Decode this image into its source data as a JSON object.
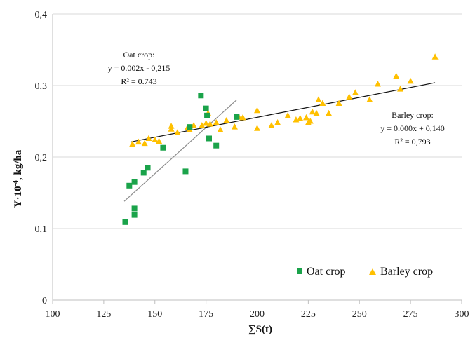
{
  "chart_data": {
    "type": "scatter",
    "xlabel": "∑S(t)",
    "ylabel_prefix": "Y·10",
    "ylabel_sup": "-4",
    "ylabel_suffix": ", kg/ha",
    "xlim": [
      100,
      300
    ],
    "ylim": [
      0,
      0.4
    ],
    "x_ticks": [
      100,
      125,
      150,
      175,
      200,
      225,
      250,
      275,
      300
    ],
    "x_tick_labels": [
      "100",
      "125",
      "150",
      "175",
      "200",
      "225",
      "250",
      "275",
      "300"
    ],
    "y_ticks": [
      0,
      0.1,
      0.2,
      0.3,
      0.4
    ],
    "y_tick_labels": [
      "0",
      "0,1",
      "0,2",
      "0,3",
      "0,4"
    ],
    "grid": "horizontal",
    "legend_position": "bottom-right",
    "series": [
      {
        "name": "Oat crop",
        "marker": "square",
        "color": "#1aa34a",
        "points": [
          [
            135.5,
            0.109
          ],
          [
            137.5,
            0.16
          ],
          [
            140.0,
            0.128
          ],
          [
            140.0,
            0.119
          ],
          [
            140.0,
            0.165
          ],
          [
            144.5,
            0.178
          ],
          [
            146.5,
            0.185
          ],
          [
            154.0,
            0.213
          ],
          [
            165.0,
            0.18
          ],
          [
            167.0,
            0.242
          ],
          [
            172.5,
            0.286
          ],
          [
            175.0,
            0.268
          ],
          [
            175.5,
            0.258
          ],
          [
            176.5,
            0.226
          ],
          [
            180.0,
            0.216
          ],
          [
            190.0,
            0.256
          ]
        ],
        "trendline": {
          "x_range": [
            135,
            190
          ],
          "y_range": [
            0.138,
            0.28
          ],
          "equation": "y = 0.002x - 0,215",
          "r2": "R² = 0.743",
          "annotation_title": "Oat crop:"
        }
      },
      {
        "name": "Barley crop",
        "marker": "triangle",
        "color": "#ffc000",
        "points": [
          [
            139,
            0.218
          ],
          [
            142,
            0.221
          ],
          [
            145,
            0.219
          ],
          [
            147,
            0.226
          ],
          [
            150,
            0.224
          ],
          [
            152,
            0.222
          ],
          [
            158,
            0.243
          ],
          [
            158,
            0.239
          ],
          [
            161,
            0.234
          ],
          [
            166,
            0.241
          ],
          [
            167,
            0.238
          ],
          [
            169,
            0.244
          ],
          [
            173,
            0.244
          ],
          [
            175,
            0.247
          ],
          [
            176,
            0.261
          ],
          [
            177,
            0.246
          ],
          [
            180,
            0.248
          ],
          [
            182,
            0.238
          ],
          [
            185,
            0.251
          ],
          [
            189,
            0.242
          ],
          [
            191,
            0.256
          ],
          [
            193,
            0.255
          ],
          [
            200,
            0.24
          ],
          [
            200,
            0.265
          ],
          [
            207,
            0.244
          ],
          [
            210,
            0.248
          ],
          [
            215,
            0.258
          ],
          [
            219,
            0.252
          ],
          [
            221,
            0.254
          ],
          [
            224,
            0.255
          ],
          [
            225,
            0.248
          ],
          [
            226,
            0.25
          ],
          [
            227,
            0.263
          ],
          [
            229,
            0.261
          ],
          [
            230,
            0.28
          ],
          [
            232,
            0.275
          ],
          [
            235,
            0.261
          ],
          [
            240,
            0.275
          ],
          [
            245,
            0.284
          ],
          [
            248,
            0.29
          ],
          [
            255,
            0.28
          ],
          [
            259,
            0.302
          ],
          [
            268,
            0.313
          ],
          [
            270,
            0.295
          ],
          [
            275,
            0.306
          ],
          [
            287,
            0.34
          ]
        ],
        "trendline": {
          "x_range": [
            138,
            287
          ],
          "y_range": [
            0.221,
            0.304
          ],
          "equation": "y = 0.000x + 0,140",
          "r2": "R² = 0,793",
          "annotation_title": "Barley crop:"
        }
      }
    ]
  }
}
